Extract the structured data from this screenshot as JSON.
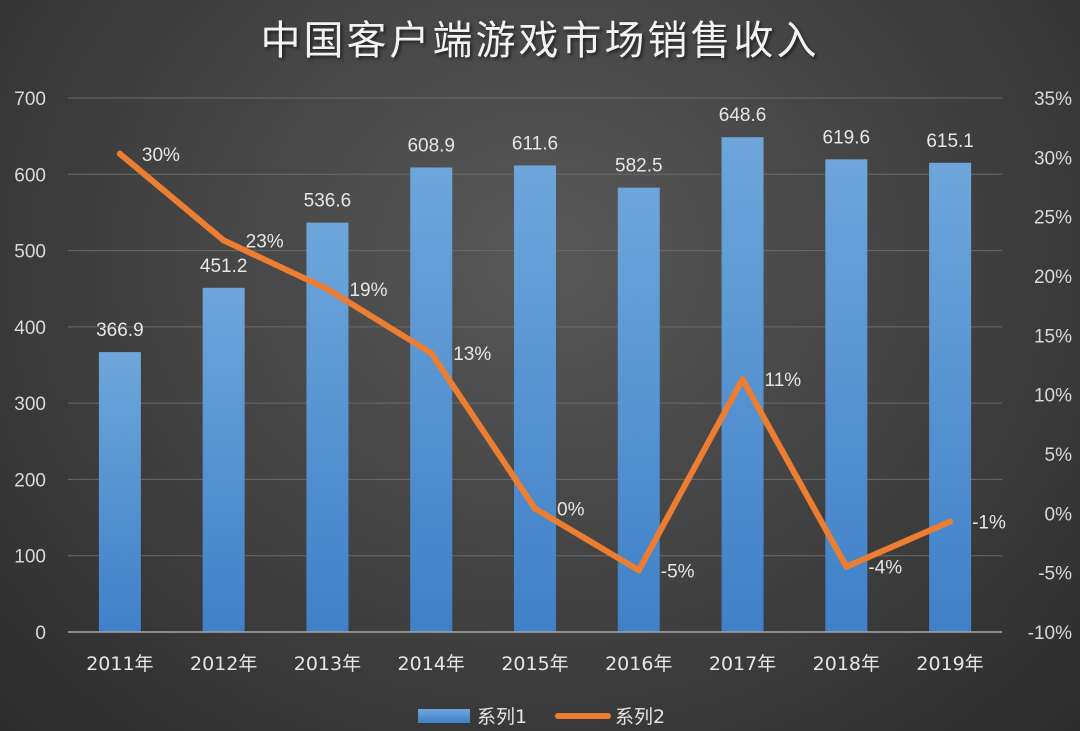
{
  "chart_data": {
    "type": "bar",
    "title": "中国客户端游戏市场销售收入",
    "categories": [
      "2011年",
      "2012年",
      "2013年",
      "2014年",
      "2015年",
      "2016年",
      "2017年",
      "2018年",
      "2019年"
    ],
    "series": [
      {
        "name": "系列1",
        "type": "bar",
        "axis": "left",
        "values": [
          366.9,
          451.2,
          536.6,
          608.9,
          611.6,
          582.5,
          648.6,
          619.6,
          615.1
        ],
        "labels": [
          "366.9",
          "451.2",
          "536.6",
          "608.9",
          "611.6",
          "582.5",
          "648.6",
          "619.6",
          "615.1"
        ],
        "color": "#5b9bd5"
      },
      {
        "name": "系列2",
        "type": "line",
        "axis": "right",
        "values": [
          30.3,
          23.0,
          18.9,
          13.5,
          0.4,
          -4.8,
          11.3,
          -4.5,
          -0.7
        ],
        "labels": [
          "30%",
          "23%",
          "19%",
          "13%",
          "0%",
          "-5%",
          "11%",
          "-4%",
          "-1%"
        ],
        "color": "#ed7d31"
      }
    ],
    "y_left": {
      "min": 0,
      "max": 700,
      "step": 100,
      "tick_labels": [
        "0",
        "100",
        "200",
        "300",
        "400",
        "500",
        "600",
        "700"
      ]
    },
    "y_right": {
      "min": -10,
      "max": 35,
      "step": 5,
      "tick_labels": [
        "-10%",
        "-5%",
        "0%",
        "5%",
        "10%",
        "15%",
        "20%",
        "25%",
        "30%",
        "35%"
      ]
    },
    "grid": true,
    "legend": "bottom"
  }
}
